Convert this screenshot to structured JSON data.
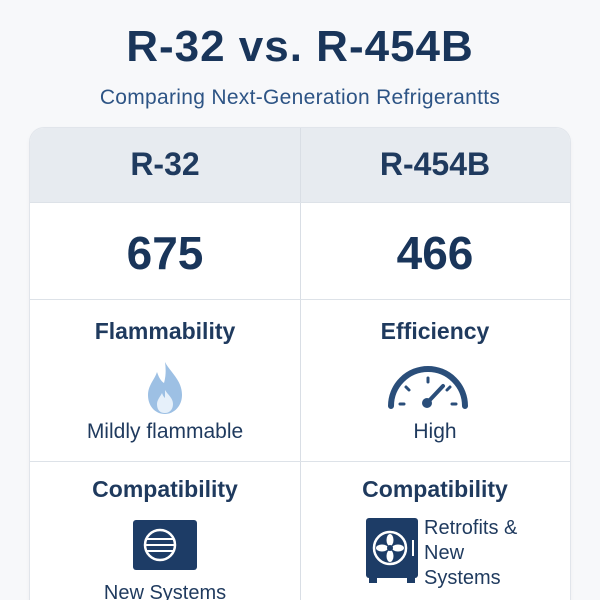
{
  "title": "R-32 vs. R-454B",
  "subtitle": "Comparing Next-Generation Refrigerantts",
  "columns": [
    {
      "name": "R-32",
      "value": "675",
      "property_label": "Flammability",
      "property_icon": "flame-icon",
      "property_value": "Mildly flammable",
      "compat_label": "Compatibility",
      "compat_icon": "outdoor-unit-icon",
      "compat_value": "New Systems"
    },
    {
      "name": "R-454B",
      "value": "466",
      "property_label": "Efficiency",
      "property_icon": "gauge-icon",
      "property_value": "High",
      "compat_label": "Compatibility",
      "compat_icon": "fan-unit-icon",
      "compat_value": "Retrofits & New Systems"
    }
  ],
  "colors": {
    "primary": "#19355a",
    "header_bg": "#e7ebf0",
    "flame": "#8fb7df",
    "gauge": "#2a4e7a"
  }
}
